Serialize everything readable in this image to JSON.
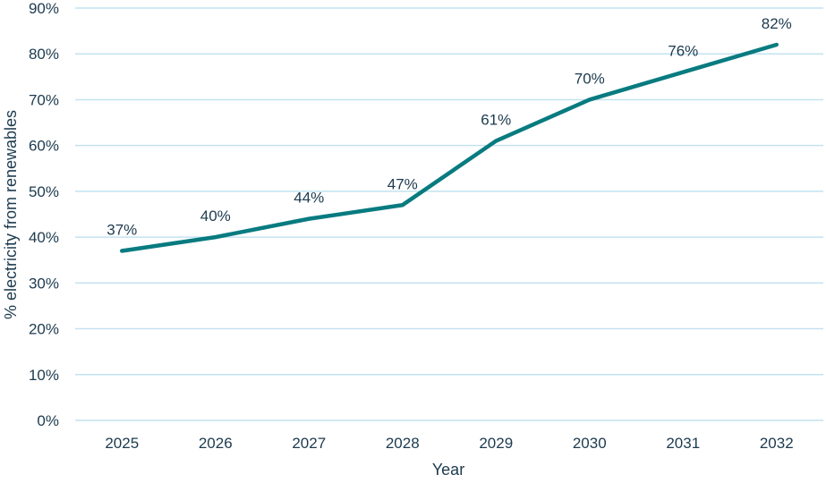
{
  "chart_data": {
    "type": "line",
    "title": "",
    "xlabel": "Year",
    "ylabel": "% electricity from renewables",
    "categories": [
      "2025",
      "2026",
      "2027",
      "2028",
      "2029",
      "2030",
      "2031",
      "2032"
    ],
    "series": [
      {
        "values": [
          37,
          40,
          44,
          47,
          61,
          70,
          76,
          82
        ]
      }
    ],
    "data_labels": [
      "37%",
      "40%",
      "44%",
      "47%",
      "61%",
      "70%",
      "76%",
      "82%"
    ],
    "ylim": [
      0,
      90
    ],
    "yticks": [
      "0%",
      "10%",
      "20%",
      "30%",
      "40%",
      "50%",
      "60%",
      "70%",
      "80%",
      "90%"
    ],
    "grid": true,
    "legend": "none",
    "colors": {
      "line": "#087b80",
      "grid": "#c3e2f0",
      "text": "#1c3a4e"
    }
  }
}
